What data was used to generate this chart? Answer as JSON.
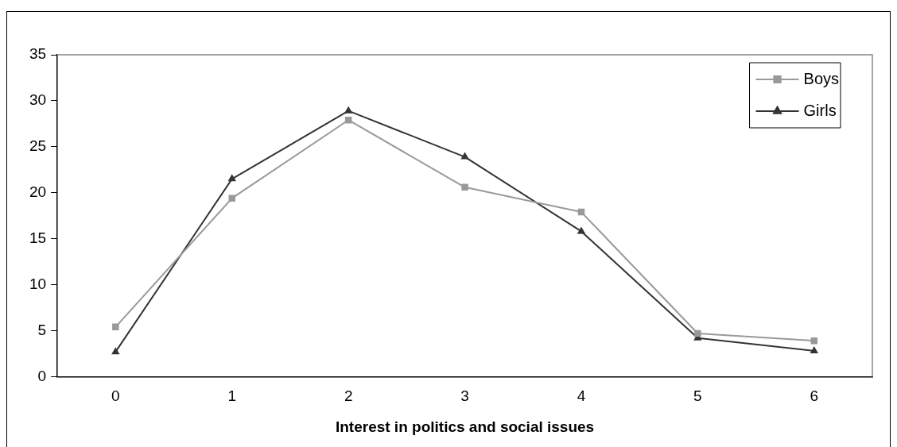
{
  "chart_data": {
    "type": "line",
    "xlabel": "Interest in politics and social issues",
    "categories": [
      "0",
      "1",
      "2",
      "3",
      "4",
      "5",
      "6"
    ],
    "series": [
      {
        "name": "Boys",
        "color": "#999999",
        "marker": "square",
        "values": [
          5.4,
          19.4,
          27.9,
          20.6,
          17.9,
          4.7,
          3.9
        ]
      },
      {
        "name": "Girls",
        "color": "#333333",
        "marker": "triangle",
        "values": [
          2.7,
          21.5,
          28.9,
          23.9,
          15.8,
          4.2,
          2.8
        ]
      }
    ],
    "ylim": [
      0,
      35
    ],
    "yticks": [
      0,
      5,
      10,
      15,
      20,
      25,
      30,
      35
    ],
    "grid": false,
    "legend": "top right",
    "line_style": "solid"
  }
}
